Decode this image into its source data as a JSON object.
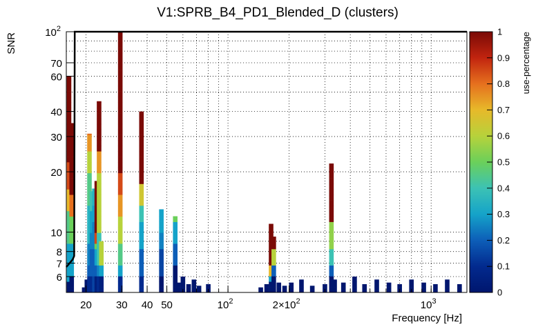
{
  "chart_data": {
    "type": "heatmap",
    "title": "V1:SPRB_B4_PD1_Blended_D (clusters)",
    "xlabel": "Frequency [Hz]",
    "ylabel": "SNR",
    "colorbar_label": "use-percentage",
    "x_scale": "log",
    "y_scale": "log",
    "xlim": [
      16,
      1500
    ],
    "ylim": [
      5,
      100
    ],
    "zlim": [
      0,
      1
    ],
    "grid": true,
    "x_ticks": [
      {
        "value": 20,
        "label": "20"
      },
      {
        "value": 30,
        "label": "30"
      },
      {
        "value": 40,
        "label": "40"
      },
      {
        "value": 50,
        "label": "50"
      },
      {
        "value": 100,
        "label": "10",
        "exp": "2"
      },
      {
        "value": 200,
        "label": "2×10",
        "exp": "2"
      },
      {
        "value": 1000,
        "label": "10",
        "exp": "3"
      }
    ],
    "y_ticks": [
      {
        "value": 6,
        "label": "6"
      },
      {
        "value": 7,
        "label": "7"
      },
      {
        "value": 8,
        "label": "8"
      },
      {
        "value": 10,
        "label": "10"
      },
      {
        "value": 20,
        "label": "20"
      },
      {
        "value": 30,
        "label": "30"
      },
      {
        "value": 40,
        "label": "40"
      },
      {
        "value": 60,
        "label": "60"
      },
      {
        "value": 70,
        "label": "70"
      },
      {
        "value": 100,
        "label": "10",
        "exp": "2"
      }
    ],
    "colorbar_ticks": [
      "0",
      "0.1",
      "0.2",
      "0.3",
      "0.4",
      "0.5",
      "0.6",
      "0.7",
      "0.8",
      "0.9",
      "1"
    ],
    "columns": [
      {
        "f": 16.5,
        "snr_max": 60,
        "stops": [
          [
            5,
            0.0
          ],
          [
            5.6,
            0.3
          ],
          [
            9,
            0.45
          ],
          [
            13,
            0.7
          ],
          [
            16,
            0.85
          ],
          [
            22,
            1.0
          ]
        ]
      },
      {
        "f": 17.0,
        "snr_max": 35,
        "stops": [
          [
            5,
            0.0
          ],
          [
            6,
            0.3
          ],
          [
            9,
            0.5
          ],
          [
            12,
            0.8
          ],
          [
            15,
            1.0
          ]
        ]
      },
      {
        "f": 19.6,
        "snr_max": 5.3,
        "stops": [
          [
            5,
            0.0
          ]
        ]
      },
      {
        "f": 20.2,
        "snr_max": 5.8,
        "stops": [
          [
            5,
            0.0
          ]
        ]
      },
      {
        "f": 20.8,
        "snr_max": 31,
        "stops": [
          [
            5,
            0.1
          ],
          [
            6,
            0.2
          ],
          [
            7,
            0.25
          ],
          [
            9,
            0.35
          ],
          [
            14,
            0.45
          ],
          [
            20,
            0.6
          ],
          [
            25,
            0.75
          ],
          [
            30,
            0.8
          ]
        ]
      },
      {
        "f": 21.4,
        "snr_max": 16,
        "stops": [
          [
            5,
            0.1
          ],
          [
            6,
            0.2
          ],
          [
            8,
            0.25
          ],
          [
            10,
            0.3
          ],
          [
            13,
            0.4
          ]
        ]
      },
      {
        "f": 22.0,
        "snr_max": 16.5,
        "stops": [
          [
            5,
            0.15
          ],
          [
            6,
            0.2
          ],
          [
            8,
            0.25
          ],
          [
            11,
            0.3
          ],
          [
            14,
            0.35
          ]
        ]
      },
      {
        "f": 22.6,
        "snr_max": 18,
        "stops": [
          [
            5,
            0.05
          ],
          [
            6,
            0.2
          ],
          [
            7,
            0.3
          ],
          [
            8,
            0.5
          ],
          [
            9,
            0.85
          ],
          [
            10,
            1.0
          ]
        ]
      },
      {
        "f": 23.2,
        "snr_max": 45,
        "stops": [
          [
            5,
            0.1
          ],
          [
            6,
            0.25
          ],
          [
            7,
            0.4
          ],
          [
            10,
            0.6
          ],
          [
            20,
            0.75
          ],
          [
            25,
            1.0
          ]
        ]
      },
      {
        "f": 23.8,
        "snr_max": 9,
        "stops": [
          [
            5,
            0.05
          ],
          [
            6,
            0.3
          ],
          [
            7,
            0.6
          ]
        ]
      },
      {
        "f": 29.5,
        "snr_max": 100,
        "stops": [
          [
            5,
            0.1
          ],
          [
            6,
            0.3
          ],
          [
            7,
            0.45
          ],
          [
            9,
            0.6
          ],
          [
            12,
            0.75
          ],
          [
            15,
            0.85
          ],
          [
            20,
            1.0
          ]
        ]
      },
      {
        "f": 37.5,
        "snr_max": 40,
        "stops": [
          [
            5,
            0.1
          ],
          [
            6,
            0.2
          ],
          [
            8,
            0.3
          ],
          [
            11,
            0.4
          ],
          [
            14,
            0.65
          ],
          [
            17,
            1.0
          ]
        ]
      },
      {
        "f": 47,
        "snr_max": 13,
        "stops": [
          [
            5,
            0.0
          ],
          [
            6,
            0.15
          ],
          [
            8,
            0.25
          ],
          [
            10,
            0.3
          ]
        ]
      },
      {
        "f": 55,
        "snr_max": 12,
        "stops": [
          [
            5,
            0.0
          ],
          [
            7,
            0.2
          ],
          [
            9,
            0.3
          ],
          [
            11,
            0.5
          ]
        ]
      },
      {
        "f": 57,
        "snr_max": 5.6,
        "stops": [
          [
            5,
            0.0
          ]
        ]
      },
      {
        "f": 60,
        "snr_max": 6,
        "stops": [
          [
            5,
            0.0
          ]
        ]
      },
      {
        "f": 64,
        "snr_max": 5.5,
        "stops": [
          [
            5,
            0.0
          ]
        ]
      },
      {
        "f": 68,
        "snr_max": 5.8,
        "stops": [
          [
            5,
            0.0
          ]
        ]
      },
      {
        "f": 72,
        "snr_max": 5.4,
        "stops": [
          [
            5,
            0.0
          ]
        ]
      },
      {
        "f": 80,
        "snr_max": 5.5,
        "stops": [
          [
            5,
            0.0
          ]
        ]
      },
      {
        "f": 145,
        "snr_max": 5.3,
        "stops": [
          [
            5,
            0.0
          ]
        ]
      },
      {
        "f": 155,
        "snr_max": 5.5,
        "stops": [
          [
            5,
            0.0
          ]
        ]
      },
      {
        "f": 163,
        "snr_max": 11,
        "stops": [
          [
            5,
            0.0
          ],
          [
            5.5,
            0.3
          ],
          [
            6,
            0.7
          ],
          [
            7,
            1.0
          ]
        ]
      },
      {
        "f": 168,
        "snr_max": 9.5,
        "stops": [
          [
            5,
            0.0
          ],
          [
            6,
            0.2
          ],
          [
            7,
            0.6
          ],
          [
            8,
            1.0
          ]
        ]
      },
      {
        "f": 178,
        "snr_max": 5.6,
        "stops": [
          [
            5,
            0.0
          ]
        ]
      },
      {
        "f": 190,
        "snr_max": 5.4,
        "stops": [
          [
            5,
            0.0
          ]
        ]
      },
      {
        "f": 205,
        "snr_max": 5.6,
        "stops": [
          [
            5,
            0.0
          ]
        ]
      },
      {
        "f": 230,
        "snr_max": 5.8,
        "stops": [
          [
            5,
            0.0
          ]
        ]
      },
      {
        "f": 260,
        "snr_max": 5.4,
        "stops": [
          [
            5,
            0.0
          ]
        ]
      },
      {
        "f": 300,
        "snr_max": 5.5,
        "stops": [
          [
            5,
            0.0
          ]
        ]
      },
      {
        "f": 323,
        "snr_max": 22,
        "stops": [
          [
            5,
            0.0
          ],
          [
            6,
            0.2
          ],
          [
            7,
            0.4
          ],
          [
            8,
            0.55
          ],
          [
            11,
            1.0
          ]
        ]
      },
      {
        "f": 335,
        "snr_max": 5.8,
        "stops": [
          [
            5,
            0.0
          ]
        ]
      },
      {
        "f": 370,
        "snr_max": 5.6,
        "stops": [
          [
            5,
            0.0
          ]
        ]
      },
      {
        "f": 420,
        "snr_max": 6,
        "stops": [
          [
            5,
            0.0
          ]
        ]
      },
      {
        "f": 470,
        "snr_max": 5.5,
        "stops": [
          [
            5,
            0.0
          ]
        ]
      },
      {
        "f": 540,
        "snr_max": 5.8,
        "stops": [
          [
            5,
            0.0
          ]
        ]
      },
      {
        "f": 620,
        "snr_max": 5.6,
        "stops": [
          [
            5,
            0.0
          ]
        ]
      },
      {
        "f": 700,
        "snr_max": 5.5,
        "stops": [
          [
            5,
            0.0
          ]
        ]
      },
      {
        "f": 800,
        "snr_max": 5.8,
        "stops": [
          [
            5,
            0.0
          ]
        ]
      },
      {
        "f": 920,
        "snr_max": 5.6,
        "stops": [
          [
            5,
            0.0
          ]
        ]
      },
      {
        "f": 1050,
        "snr_max": 5.5,
        "stops": [
          [
            5,
            0.0
          ]
        ]
      },
      {
        "f": 1200,
        "snr_max": 5.8,
        "stops": [
          [
            5,
            0.0
          ]
        ]
      },
      {
        "f": 1380,
        "snr_max": 5.5,
        "stops": [
          [
            5,
            0.0
          ]
        ]
      }
    ],
    "threshold_line": [
      [
        16,
        6.7
      ],
      [
        16.4,
        6.9
      ],
      [
        16.8,
        7.1
      ],
      [
        17.2,
        7.3
      ],
      [
        17.5,
        7.6
      ],
      [
        17.6,
        100
      ],
      [
        1500,
        100
      ]
    ]
  }
}
